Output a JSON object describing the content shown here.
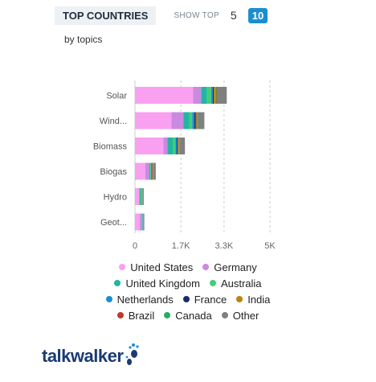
{
  "header": {
    "title": "TOP COUNTRIES",
    "show_top_label": "SHOW TOP",
    "option_5": "5",
    "option_10": "10",
    "subtitle": "by topics"
  },
  "logo": {
    "text": "talkwalker"
  },
  "chart_data": {
    "type": "bar",
    "orientation": "horizontal",
    "stacked": true,
    "categories": [
      "Solar",
      "Wind...",
      "Biomass",
      "Biogas",
      "Hydro",
      "Geot..."
    ],
    "xlim": [
      0,
      5000
    ],
    "xticks": [
      0,
      1700,
      3300,
      5000
    ],
    "xtick_labels": [
      "0",
      "1.7K",
      "3.3K",
      "5K"
    ],
    "grid": true,
    "legend_position": "bottom",
    "series": [
      {
        "name": "United States",
        "color": "#f9a0f0",
        "values": [
          2150,
          1350,
          1050,
          380,
          150,
          180
        ]
      },
      {
        "name": "Germany",
        "color": "#c98ae0",
        "values": [
          300,
          450,
          150,
          150,
          30,
          80
        ]
      },
      {
        "name": "United Kingdom",
        "color": "#21b6a0",
        "values": [
          220,
          220,
          220,
          40,
          30,
          20
        ]
      },
      {
        "name": "Australia",
        "color": "#3fcf78",
        "values": [
          150,
          100,
          80,
          20,
          40,
          10
        ]
      },
      {
        "name": "Netherlands",
        "color": "#1a8fd0",
        "values": [
          60,
          80,
          50,
          10,
          10,
          5
        ]
      },
      {
        "name": "France",
        "color": "#1a2a6c",
        "values": [
          40,
          50,
          30,
          10,
          5,
          5
        ]
      },
      {
        "name": "India",
        "color": "#b8860b",
        "values": [
          80,
          30,
          30,
          20,
          5,
          5
        ]
      },
      {
        "name": "Brazil",
        "color": "#c0392b",
        "values": [
          20,
          20,
          20,
          30,
          5,
          5
        ]
      },
      {
        "name": "Canada",
        "color": "#27ae60",
        "values": [
          30,
          40,
          30,
          20,
          10,
          5
        ]
      },
      {
        "name": "Other",
        "color": "#808080",
        "values": [
          350,
          230,
          190,
          90,
          40,
          30
        ]
      }
    ]
  },
  "legend_rows": [
    [
      "United States",
      "Germany"
    ],
    [
      "United Kingdom",
      "Australia"
    ],
    [
      "Netherlands",
      "France",
      "India"
    ],
    [
      "Brazil",
      "Canada",
      "Other"
    ]
  ]
}
